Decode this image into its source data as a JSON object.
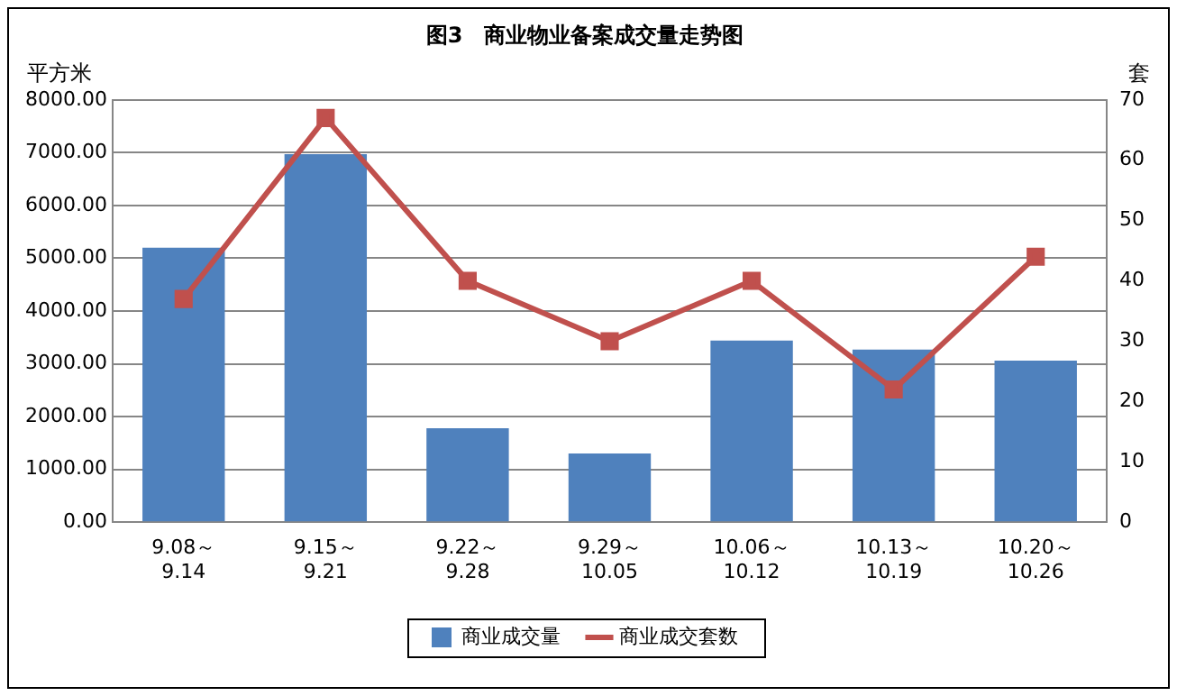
{
  "chart_data": {
    "type": "bar",
    "title": "图3　商业物业备案成交量走势图",
    "ylabel": "平方米",
    "y2label": "套",
    "categories": [
      "9.08～9.14",
      "9.15～9.21",
      "9.22～9.28",
      "9.29～10.05",
      "10.06～10.12",
      "10.13～10.19",
      "10.20～10.26"
    ],
    "series": [
      {
        "name": "商业成交量",
        "color": "#4f81bd",
        "values": [
          5200,
          6970,
          1780,
          1300,
          3440,
          3270,
          3060
        ]
      },
      {
        "name": "商业成交套数",
        "type": "line",
        "axis": "y2",
        "color": "#c0504d",
        "marker": "square",
        "values": [
          37,
          67,
          40,
          30,
          40,
          22,
          44
        ]
      }
    ],
    "ylim": [
      0,
      8000
    ],
    "yticks": [
      {
        "value": 0,
        "label": "0.00"
      },
      {
        "value": 1000,
        "label": "1000.00"
      },
      {
        "value": 2000,
        "label": "2000.00"
      },
      {
        "value": 3000,
        "label": "3000.00"
      },
      {
        "value": 4000,
        "label": "4000.00"
      },
      {
        "value": 5000,
        "label": "5000.00"
      },
      {
        "value": 6000,
        "label": "6000.00"
      },
      {
        "value": 7000,
        "label": "7000.00"
      },
      {
        "value": 8000,
        "label": "8000.00"
      }
    ],
    "y2lim": [
      0,
      70
    ],
    "y2ticks": [
      0,
      10,
      20,
      30,
      40,
      50,
      60,
      70
    ],
    "grid": "y",
    "legend": "bottom"
  }
}
